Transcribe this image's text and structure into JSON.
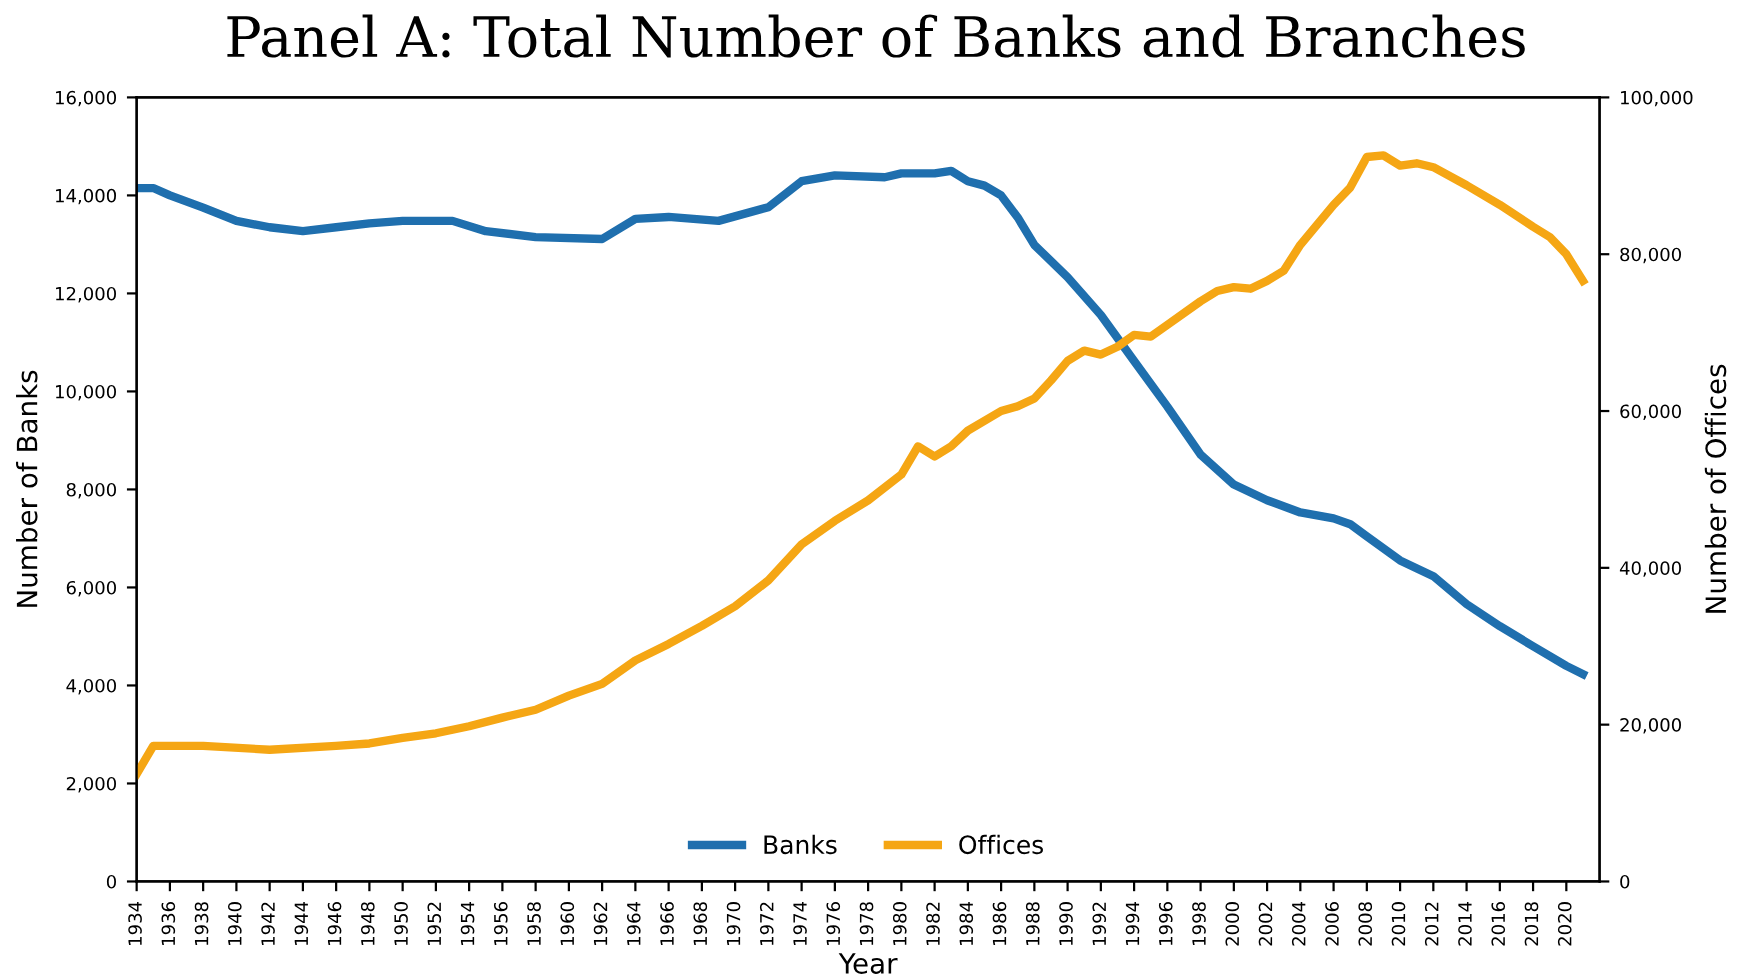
{
  "chart_data": {
    "type": "line",
    "title": "Panel A: Total Number of Banks and Branches",
    "xlabel": "Year",
    "ylabel": "Number of Banks",
    "y2label": "Number of Offices",
    "xlim": [
      1934,
      2022
    ],
    "xticks": [
      1934,
      1936,
      1938,
      1940,
      1942,
      1944,
      1946,
      1948,
      1950,
      1952,
      1954,
      1956,
      1958,
      1960,
      1962,
      1964,
      1966,
      1968,
      1970,
      1972,
      1974,
      1976,
      1978,
      1980,
      1982,
      1984,
      1986,
      1988,
      1990,
      1992,
      1994,
      1996,
      1998,
      2000,
      2002,
      2004,
      2006,
      2008,
      2010,
      2012,
      2014,
      2016,
      2018,
      2020
    ],
    "ylim": [
      0,
      16000
    ],
    "yticks": [
      {
        "value": 0,
        "label": "0"
      },
      {
        "value": 2000,
        "label": "2,000"
      },
      {
        "value": 4000,
        "label": "4,000"
      },
      {
        "value": 6000,
        "label": "6,000"
      },
      {
        "value": 8000,
        "label": "8,000"
      },
      {
        "value": 10000,
        "label": "10,000"
      },
      {
        "value": 12000,
        "label": "12,000"
      },
      {
        "value": 14000,
        "label": "14,000"
      },
      {
        "value": 16000,
        "label": "16,000"
      }
    ],
    "y2lim": [
      0,
      100000
    ],
    "y2ticks": [
      {
        "value": 0,
        "label": "0"
      },
      {
        "value": 20000,
        "label": "20,000"
      },
      {
        "value": 40000,
        "label": "40,000"
      },
      {
        "value": 60000,
        "label": "60,000"
      },
      {
        "value": 80000,
        "label": "80,000"
      },
      {
        "value": 100000,
        "label": "100,000"
      }
    ],
    "grid": false,
    "legend": "bottom",
    "marker": "none",
    "line_style": "solid",
    "series": [
      {
        "name": "Banks",
        "color": "#1f6fae",
        "x": [
          1934,
          1935,
          1936,
          1938,
          1940,
          1942,
          1944,
          1946,
          1948,
          1950,
          1953,
          1955,
          1958,
          1962,
          1964,
          1966,
          1969,
          1972,
          1974,
          1976,
          1979,
          1980,
          1982,
          1983,
          1984,
          1985,
          1986,
          1987,
          1988,
          1990,
          1992,
          1994,
          1996,
          1998,
          2000,
          2002,
          2004,
          2006,
          2007,
          2008,
          2010,
          2012,
          2014,
          2016,
          2018,
          2020,
          2021
        ],
        "values": [
          14150,
          14150,
          14000,
          13750,
          13480,
          13350,
          13270,
          13350,
          13430,
          13480,
          13480,
          13270,
          13150,
          13110,
          13520,
          13560,
          13480,
          13760,
          14290,
          14410,
          14370,
          14450,
          14450,
          14500,
          14290,
          14200,
          14000,
          13550,
          12990,
          12330,
          11560,
          10620,
          9690,
          8710,
          8100,
          7780,
          7530,
          7410,
          7290,
          7040,
          6550,
          6230,
          5660,
          5210,
          4800,
          4400,
          4230
        ]
      },
      {
        "name": "Offices",
        "color": "#f5a614",
        "axis": "y2",
        "x": [
          1934,
          1935,
          1938,
          1942,
          1946,
          1948,
          1950,
          1952,
          1954,
          1956,
          1958,
          1960,
          1962,
          1964,
          1966,
          1968,
          1970,
          1972,
          1974,
          1976,
          1978,
          1980,
          1981,
          1982,
          1983,
          1984,
          1986,
          1987,
          1988,
          1989,
          1990,
          1991,
          1992,
          1993,
          1994,
          1995,
          1996,
          1998,
          1999,
          2000,
          2001,
          2002,
          2003,
          2004,
          2006,
          2007,
          2008,
          2009,
          2010,
          2011,
          2012,
          2014,
          2016,
          2018,
          2019,
          2020,
          2021
        ],
        "values": [
          13700,
          17300,
          17300,
          16800,
          17300,
          17600,
          18300,
          18900,
          19800,
          20900,
          21900,
          23700,
          25200,
          28200,
          30300,
          32600,
          35100,
          38400,
          43000,
          46000,
          48600,
          51900,
          55500,
          54200,
          55500,
          57500,
          60000,
          60600,
          61600,
          63900,
          66400,
          67700,
          67200,
          68200,
          69700,
          69500,
          71000,
          74000,
          75300,
          75800,
          75600,
          76600,
          77900,
          81200,
          86300,
          88500,
          92400,
          92600,
          91300,
          91600,
          91100,
          88800,
          86300,
          83500,
          82200,
          80000,
          76600
        ]
      }
    ]
  }
}
